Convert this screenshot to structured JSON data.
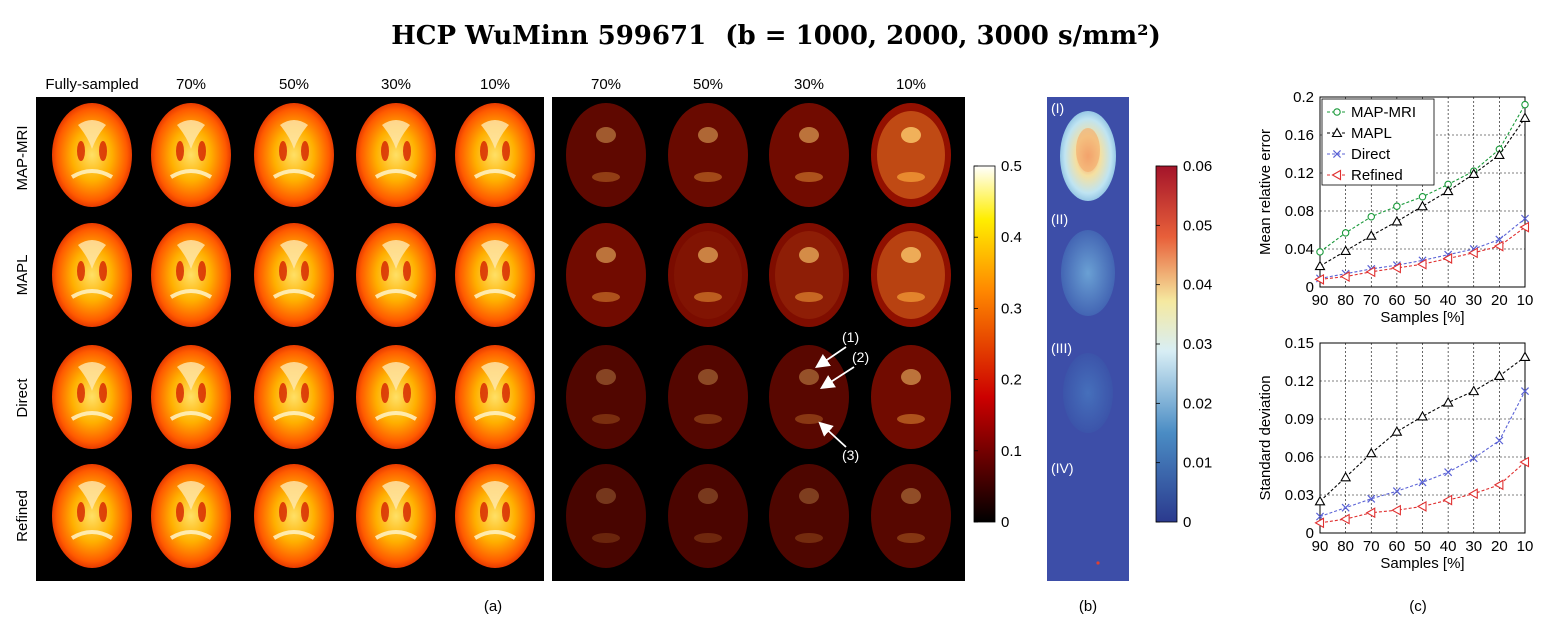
{
  "title": {
    "prefix": "HCP WuMinn 599671",
    "condition": "(b = 1000, 2000, 3000 s/mm²)"
  },
  "panel_a": {
    "label": "(a)",
    "left_columns": [
      "Fully-sampled",
      "70%",
      "50%",
      "30%",
      "10%"
    ],
    "right_columns": [
      "70%",
      "50%",
      "30%",
      "10%"
    ],
    "rows": [
      "MAP-MRI",
      "MAPL",
      "Direct",
      "Refined"
    ],
    "annotations": [
      "(1)",
      "(2)",
      "(3)"
    ],
    "colorbar": {
      "ticks": [
        "0.5",
        "0.4",
        "0.3",
        "0.2",
        "0.1",
        "0"
      ],
      "colormap": "hot"
    }
  },
  "panel_b": {
    "label": "(b)",
    "items": [
      "(I)",
      "(II)",
      "(III)",
      "(IV)"
    ],
    "colorbar": {
      "ticks": [
        "0.06",
        "0.05",
        "0.04",
        "0.03",
        "0.02",
        "0.01",
        "0"
      ],
      "colormap": "jet"
    }
  },
  "panel_c_label": "(c)",
  "chart_data": [
    {
      "type": "line",
      "x": [
        90,
        80,
        70,
        60,
        50,
        40,
        30,
        20,
        10
      ],
      "xlabel": "Samples [%]",
      "ylabel": "Mean relative error",
      "ylim": [
        0,
        0.2
      ],
      "yticks": [
        "0",
        "0.04",
        "0.08",
        "0.12",
        "0.16",
        "0.2"
      ],
      "grid": true,
      "legend": "top-left",
      "series": [
        {
          "name": "MAP-MRI",
          "color": "#1a9a3a",
          "marker": "circle",
          "values": [
            0.037,
            0.057,
            0.074,
            0.085,
            0.095,
            0.108,
            0.122,
            0.145,
            0.192
          ]
        },
        {
          "name": "MAPL",
          "color": "#000000",
          "marker": "triangle",
          "values": [
            0.022,
            0.038,
            0.054,
            0.069,
            0.085,
            0.101,
            0.119,
            0.139,
            0.178
          ]
        },
        {
          "name": "Direct",
          "color": "#5b63d6",
          "marker": "x",
          "values": [
            0.009,
            0.014,
            0.019,
            0.023,
            0.028,
            0.034,
            0.04,
            0.05,
            0.072
          ]
        },
        {
          "name": "Refined",
          "color": "#e03030",
          "marker": "triangle-left",
          "values": [
            0.008,
            0.011,
            0.016,
            0.02,
            0.024,
            0.03,
            0.036,
            0.043,
            0.063
          ]
        }
      ]
    },
    {
      "type": "line",
      "x": [
        90,
        80,
        70,
        60,
        50,
        40,
        30,
        20,
        10
      ],
      "xlabel": "Samples [%]",
      "ylabel": "Standard deviation",
      "ylim": [
        0,
        0.15
      ],
      "yticks": [
        "0",
        "0.03",
        "0.06",
        "0.09",
        "0.12",
        "0.15"
      ],
      "grid": true,
      "series": [
        {
          "name": "MAPL",
          "color": "#000000",
          "marker": "triangle",
          "values": [
            0.025,
            0.044,
            0.063,
            0.08,
            0.092,
            0.103,
            0.112,
            0.124,
            0.139
          ]
        },
        {
          "name": "Direct",
          "color": "#5b63d6",
          "marker": "x",
          "values": [
            0.013,
            0.02,
            0.027,
            0.033,
            0.04,
            0.048,
            0.059,
            0.073,
            0.112
          ]
        },
        {
          "name": "Refined",
          "color": "#e03030",
          "marker": "triangle-left",
          "values": [
            0.008,
            0.011,
            0.016,
            0.018,
            0.021,
            0.026,
            0.031,
            0.038,
            0.056
          ]
        }
      ]
    }
  ]
}
